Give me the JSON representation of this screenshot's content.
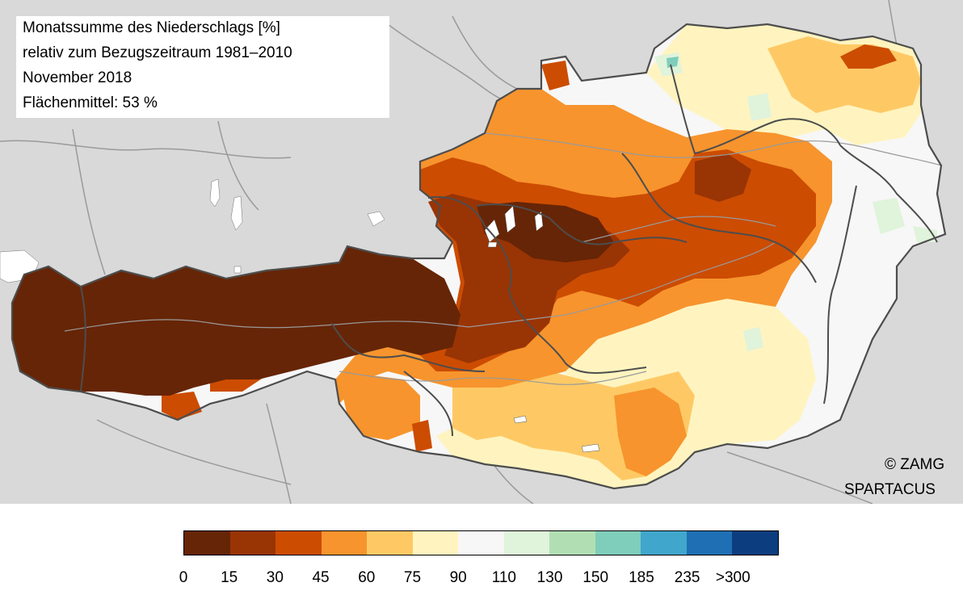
{
  "map": {
    "title_lines": [
      "Monatssumme des Niederschlags [%]",
      "relativ zum Bezugszeitraum 1981–2010",
      "November 2018",
      "Flächenmittel: 53 %"
    ],
    "credits": [
      "© ZAMG",
      "SPARTACUS"
    ],
    "background_color": "#d9d9d9",
    "border_color": "#4d4d4d",
    "river_color": "#9a9a9a",
    "lake_color": "#ffffff"
  },
  "legend": {
    "tick_labels": [
      "0",
      "15",
      "30",
      "45",
      "60",
      "75",
      "90",
      "110",
      "130",
      "150",
      "185",
      "235",
      ">300"
    ],
    "colors": [
      "#662506",
      "#993404",
      "#cc4c02",
      "#f7942d",
      "#fec965",
      "#fff4bf",
      "#f7f7f7",
      "#e0f3db",
      "#b1dfb3",
      "#7fcdbb",
      "#41a6cc",
      "#1f6fb4",
      "#0c3d7f"
    ]
  }
}
